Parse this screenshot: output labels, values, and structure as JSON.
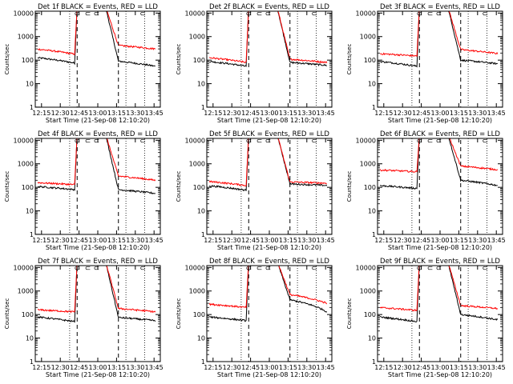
{
  "colors": {
    "events": "#000000",
    "lld": "#ff0000",
    "axis": "#000000",
    "background": "#ffffff"
  },
  "common": {
    "xticks": [
      "12:15",
      "12:30",
      "12:45",
      "13:00",
      "13:15",
      "13:30",
      "13:45"
    ],
    "xtick_minutes": [
      15,
      30,
      45,
      60,
      75,
      90,
      105
    ],
    "x_range_minutes": [
      10,
      110
    ],
    "yticks": [
      "1",
      "10",
      "100",
      "1000",
      "10000"
    ],
    "y_range": [
      1,
      12000
    ],
    "ylabel": "Counts/sec",
    "xlabel": "Start Time (21-Sep-08 12:10:20)",
    "dotted_minutes": [
      37.5,
      82.5,
      97.5
    ],
    "dashed_minutes": [
      43.5,
      76.5
    ],
    "attenuator_marker": "⊂"
  },
  "chart_data": [
    {
      "type": "line",
      "title": "Det 1f BLACK = Events, RED = LLD",
      "xlabel": "Start Time (21-Sep-08 12:10:20)",
      "ylabel": "Counts/sec",
      "series": [
        {
          "name": "Events",
          "color": "#000000",
          "pre": [
            130,
            75
          ],
          "post": [
            90,
            55
          ],
          "values": [
            130,
            75,
            90,
            55
          ]
        },
        {
          "name": "LLD",
          "color": "#ff0000",
          "pre": [
            300,
            180
          ],
          "post": [
            420,
            300
          ],
          "values": [
            300,
            180,
            420,
            300
          ]
        }
      ],
      "ylim": [
        1,
        12000
      ],
      "log_y": true
    },
    {
      "type": "line",
      "title": "Det 2f BLACK = Events, RED = LLD",
      "xlabel": "Start Time (21-Sep-08 12:10:20)",
      "ylabel": "Counts/sec",
      "series": [
        {
          "name": "Events",
          "color": "#000000",
          "pre": [
            90,
            55
          ],
          "post": [
            80,
            60
          ],
          "values": [
            90,
            55,
            80,
            60
          ]
        },
        {
          "name": "LLD",
          "color": "#ff0000",
          "pre": [
            130,
            80
          ],
          "post": [
            110,
            80
          ],
          "values": [
            130,
            80,
            110,
            80
          ]
        }
      ],
      "ylim": [
        1,
        12000
      ],
      "log_y": true
    },
    {
      "type": "line",
      "title": "Det 3f BLACK = Events, RED = LLD",
      "xlabel": "Start Time (21-Sep-08 12:10:20)",
      "ylabel": "Counts/sec",
      "series": [
        {
          "name": "Events",
          "color": "#000000",
          "pre": [
            90,
            55
          ],
          "post": [
            100,
            70
          ],
          "values": [
            90,
            55,
            100,
            70
          ]
        },
        {
          "name": "LLD",
          "color": "#ff0000",
          "pre": [
            190,
            150
          ],
          "post": [
            280,
            190
          ],
          "values": [
            190,
            150,
            280,
            190
          ]
        }
      ],
      "ylim": [
        1,
        12000
      ],
      "log_y": true
    },
    {
      "type": "line",
      "title": "Det 4f BLACK = Events, RED = LLD",
      "xlabel": "Start Time (21-Sep-08 12:10:20)",
      "ylabel": "Counts/sec",
      "series": [
        {
          "name": "Events",
          "color": "#000000",
          "pre": [
            110,
            80
          ],
          "post": [
            80,
            55
          ],
          "values": [
            110,
            80,
            80,
            55
          ]
        },
        {
          "name": "LLD",
          "color": "#ff0000",
          "pre": [
            160,
            130
          ],
          "post": [
            300,
            200
          ],
          "values": [
            160,
            130,
            300,
            200
          ]
        }
      ],
      "ylim": [
        1,
        12000
      ],
      "log_y": true
    },
    {
      "type": "line",
      "title": "Det 5f BLACK = Events, RED = LLD",
      "xlabel": "Start Time (21-Sep-08 12:10:20)",
      "ylabel": "Counts/sec",
      "series": [
        {
          "name": "Events",
          "color": "#000000",
          "pre": [
            120,
            75
          ],
          "post": [
            140,
            120
          ],
          "values": [
            120,
            75,
            140,
            120
          ]
        },
        {
          "name": "LLD",
          "color": "#ff0000",
          "pre": [
            180,
            120
          ],
          "post": [
            170,
            150
          ],
          "values": [
            180,
            120,
            170,
            150
          ]
        }
      ],
      "ylim": [
        1,
        12000
      ],
      "log_y": true
    },
    {
      "type": "line",
      "title": "Det 6f BLACK = Events, RED = LLD",
      "xlabel": "Start Time (21-Sep-08 12:10:20)",
      "ylabel": "Counts/sec",
      "series": [
        {
          "name": "Events",
          "color": "#000000",
          "pre": [
            120,
            90
          ],
          "post": [
            200,
            120
          ],
          "values": [
            120,
            90,
            200,
            120
          ]
        },
        {
          "name": "LLD",
          "color": "#ff0000",
          "pre": [
            550,
            460
          ],
          "post": [
            800,
            560
          ],
          "values": [
            550,
            460,
            800,
            560
          ]
        }
      ],
      "ylim": [
        1,
        12000
      ],
      "log_y": true
    },
    {
      "type": "line",
      "title": "Det 7f BLACK = Events, RED = LLD",
      "xlabel": "Start Time (21-Sep-08 12:10:20)",
      "ylabel": "Counts/sec",
      "series": [
        {
          "name": "Events",
          "color": "#000000",
          "pre": [
            80,
            50
          ],
          "post": [
            75,
            55
          ],
          "values": [
            80,
            50,
            75,
            55
          ]
        },
        {
          "name": "LLD",
          "color": "#ff0000",
          "pre": [
            160,
            130
          ],
          "post": [
            180,
            130
          ],
          "values": [
            160,
            130,
            180,
            130
          ]
        }
      ],
      "ylim": [
        1,
        12000
      ],
      "log_y": true
    },
    {
      "type": "line",
      "title": "Det 8f BLACK = Events, RED = LLD",
      "xlabel": "Start Time (21-Sep-08 12:10:20)",
      "ylabel": "Counts/sec",
      "series": [
        {
          "name": "Events",
          "color": "#000000",
          "pre": [
            80,
            55
          ],
          "post": [
            420,
            130
          ],
          "values": [
            80,
            55,
            420,
            130
          ]
        },
        {
          "name": "LLD",
          "color": "#ff0000",
          "pre": [
            280,
            200
          ],
          "post": [
            700,
            300
          ],
          "values": [
            280,
            200,
            700,
            300
          ]
        }
      ],
      "ylim": [
        1,
        12000
      ],
      "log_y": true
    },
    {
      "type": "line",
      "title": "Det 9f BLACK = Events, RED = LLD",
      "xlabel": "Start Time (21-Sep-08 12:10:20)",
      "ylabel": "Counts/sec",
      "series": [
        {
          "name": "Events",
          "color": "#000000",
          "pre": [
            80,
            50
          ],
          "post": [
            100,
            60
          ],
          "values": [
            80,
            50,
            100,
            60
          ]
        },
        {
          "name": "LLD",
          "color": "#ff0000",
          "pre": [
            200,
            150
          ],
          "post": [
            240,
            180
          ],
          "values": [
            200,
            150,
            240,
            180
          ]
        }
      ],
      "ylim": [
        1,
        12000
      ],
      "log_y": true
    }
  ]
}
